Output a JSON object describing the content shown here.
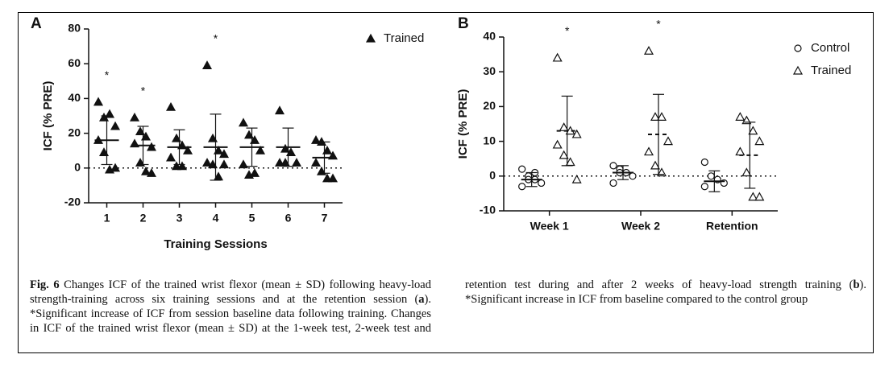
{
  "chart_data": [
    {
      "type": "dotplot",
      "panel": "A",
      "y_label": "ICF (% PRE)",
      "x_label": "Training Sessions",
      "categories": [
        "1",
        "2",
        "3",
        "4",
        "5",
        "6",
        "7"
      ],
      "ylim": [
        -20,
        80
      ],
      "yticks": [
        -20,
        0,
        20,
        40,
        60,
        80
      ],
      "legend": "top-right",
      "series": [
        {
          "name": "Trained",
          "color": "#111111",
          "marker": "triangle",
          "filled": true,
          "mean_line": "solid",
          "points": [
            [
              38,
              29,
              31,
              24,
              16,
              9,
              -1,
              0
            ],
            [
              29,
              21,
              18,
              12,
              14,
              3,
              -2,
              -3
            ],
            [
              35,
              17,
              13,
              10,
              6,
              1,
              1
            ],
            [
              59,
              17,
              10,
              8,
              3,
              2,
              -5,
              2
            ],
            [
              26,
              19,
              16,
              10,
              2,
              -4,
              -3
            ],
            [
              33,
              11,
              9,
              3,
              3,
              3
            ],
            [
              16,
              15,
              10,
              7,
              3,
              -2,
              -6,
              -6
            ]
          ],
          "means": [
            16,
            13,
            12,
            12,
            12,
            12,
            6
          ],
          "sds": [
            14,
            11,
            10,
            19,
            11,
            11,
            9
          ],
          "significance": [
            "*",
            "*",
            null,
            "*",
            null,
            null,
            null
          ]
        }
      ]
    },
    {
      "type": "dotplot",
      "panel": "B",
      "y_label": "ICF (% PRE)",
      "categories": [
        "Week 1",
        "Week 2",
        "Retention"
      ],
      "ylim": [
        -10,
        40
      ],
      "yticks": [
        -10,
        0,
        10,
        20,
        30,
        40
      ],
      "legend": "top-right",
      "series": [
        {
          "name": "Control",
          "color": "#111111",
          "marker": "circle",
          "filled": false,
          "mean_line": "solid",
          "points": [
            [
              2,
              0,
              -1,
              -2,
              -3,
              -1,
              1
            ],
            [
              3,
              2,
              1,
              0,
              -2,
              1
            ],
            [
              4,
              0,
              -1,
              -2,
              -3
            ]
          ],
          "means": [
            -1,
            1,
            -1.5
          ],
          "sds": [
            2,
            2,
            3
          ],
          "significance": [
            null,
            null,
            null
          ]
        },
        {
          "name": "Trained",
          "color": "#111111",
          "marker": "triangle",
          "filled": false,
          "mean_line": "dashed",
          "points": [
            [
              34,
              14,
              13,
              12,
              9,
              6,
              4,
              -1
            ],
            [
              36,
              17,
              17,
              10,
              7,
              3,
              1
            ],
            [
              17,
              16,
              13,
              10,
              7,
              1,
              -6,
              -6
            ]
          ],
          "means": [
            13,
            12,
            6
          ],
          "sds": [
            10,
            11.5,
            9.5
          ],
          "significance": [
            "*",
            "*",
            null
          ]
        }
      ]
    }
  ],
  "caption": [
    "Fig. 6",
    " Changes ICF of the trained wrist flexor (mean ± SD) following heavy-load strength-training across six training sessions and at the retention session (",
    "a",
    "). *Significant increase of ICF from session baseline data following training. Changes in ICF of the trained wrist flexor (mean ± SD) at the 1-week test, 2-week test and retention test during and after 2 weeks of heavy-load strength training (",
    "b",
    "). *Significant increase in ICF from baseline compared to the control group"
  ]
}
